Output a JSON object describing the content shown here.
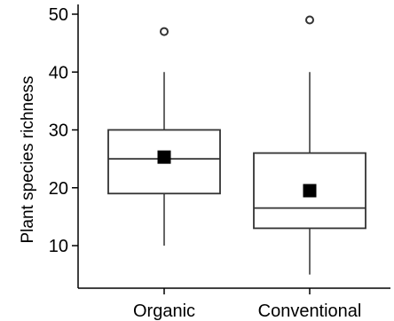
{
  "chart_data": {
    "type": "boxplot",
    "title": "",
    "xlabel": "",
    "ylabel": "Plant species richness",
    "ylim": [
      3,
      51
    ],
    "yticks": [
      10,
      20,
      30,
      40,
      50
    ],
    "grid": false,
    "categories": [
      "Organic",
      "Conventional"
    ],
    "series": [
      {
        "category": "Organic",
        "whisker_low": 10,
        "q1": 19,
        "median": 25,
        "q3": 30,
        "whisker_high": 40,
        "mean": 25.3,
        "outliers": [
          47
        ]
      },
      {
        "category": "Conventional",
        "whisker_low": 5,
        "q1": 13,
        "median": 16.5,
        "q3": 26,
        "whisker_high": 40,
        "mean": 19.5,
        "outliers": [
          49
        ]
      }
    ]
  }
}
